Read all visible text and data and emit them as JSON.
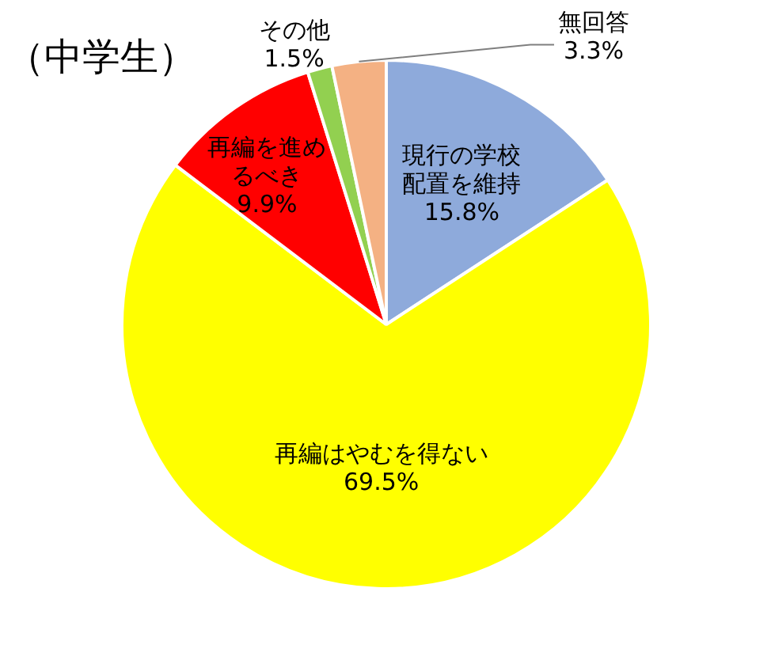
{
  "chart_data": {
    "type": "pie",
    "title": "（中学生）",
    "categories": [
      "現行の学校配置を維持",
      "再編はやむを得ない",
      "再編を進めるべき",
      "その他",
      "無回答"
    ],
    "values": [
      15.8,
      69.5,
      9.9,
      1.5,
      3.3
    ],
    "colors": [
      "#8eaadb",
      "#ffff00",
      "#ff0000",
      "#92d050",
      "#f4b183"
    ],
    "value_labels": [
      "15.8%",
      "69.5%",
      "9.9%",
      "1.5%",
      "3.3%"
    ],
    "legend": false
  }
}
